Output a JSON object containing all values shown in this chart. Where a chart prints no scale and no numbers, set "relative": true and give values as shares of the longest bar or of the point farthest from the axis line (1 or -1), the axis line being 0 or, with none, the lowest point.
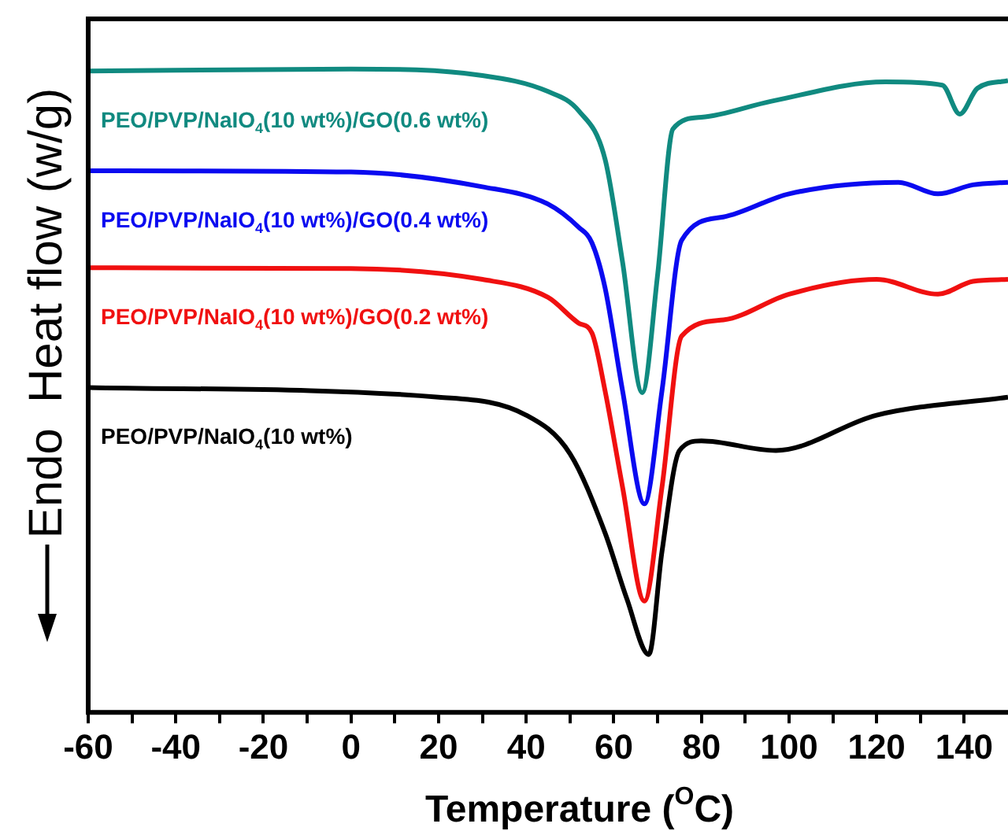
{
  "chart_data": {
    "type": "line",
    "relative": true,
    "xlabel": "Temperature ($^{O}$C)",
    "ylabel": "Heat flow (w/g)",
    "annotations": [
      "Endo"
    ],
    "marker": "none",
    "line_style": "solid",
    "xlim": [
      -60,
      150
    ],
    "xticks": [
      -60,
      {
        "value": -50,
        "label": null
      },
      -40,
      {
        "value": -30,
        "label": null
      },
      -20,
      {
        "value": -10,
        "label": null
      },
      0,
      {
        "value": 10,
        "label": null
      },
      20,
      {
        "value": 30,
        "label": null
      },
      40,
      {
        "value": 50,
        "label": null
      },
      60,
      {
        "value": 70,
        "label": null
      },
      80,
      {
        "value": 90,
        "label": null
      },
      100,
      {
        "value": 110,
        "label": null
      },
      120,
      {
        "value": 130,
        "label": null
      },
      140
    ],
    "series": [
      {
        "name": "PEO/PVP/NaIO$_{4}$(10 wt%)/GO(0.6 wt%)",
        "color": "#108a80",
        "x": [
          -60,
          0,
          30,
          45,
          52,
          58,
          62,
          66.5,
          70,
          73.5,
          80,
          96,
          122,
          135,
          139,
          143,
          150
        ],
        "values": [
          0.997,
          1.0,
          0.99,
          0.965,
          0.935,
          0.86,
          0.7,
          0.497,
          0.68,
          0.907,
          0.925,
          0.95,
          0.98,
          0.975,
          0.93,
          0.97,
          0.982
        ]
      },
      {
        "name": "PEO/PVP/NaIO$_{4}$(10 wt%)/GO(0.4 wt%)",
        "color": "#0a0af0",
        "x": [
          -60,
          0,
          30,
          45,
          52,
          55,
          58,
          62,
          67,
          71,
          75.5,
          85,
          100,
          125,
          134,
          142,
          150
        ],
        "values": [
          0.842,
          0.84,
          0.817,
          0.79,
          0.754,
          0.73,
          0.66,
          0.5,
          0.324,
          0.5,
          0.734,
          0.77,
          0.806,
          0.824,
          0.806,
          0.82,
          0.824
        ]
      },
      {
        "name": "PEO/PVP/NaIO$_{4}$(10 wt%)/GO(0.2 wt%)",
        "color": "#f01010",
        "x": [
          -60,
          0,
          30,
          45,
          52,
          55,
          58,
          62,
          67,
          71,
          75.5,
          85,
          100,
          120,
          134,
          142,
          150
        ],
        "values": [
          0.691,
          0.69,
          0.673,
          0.645,
          0.605,
          0.59,
          0.5,
          0.35,
          0.173,
          0.35,
          0.585,
          0.61,
          0.65,
          0.673,
          0.65,
          0.67,
          0.673
        ]
      },
      {
        "name": "PEO/PVP/NaIO$_{4}$(10 wt%)",
        "color": "#000000",
        "x": [
          -60,
          20,
          40,
          50,
          58,
          63,
          68,
          71,
          75,
          80,
          97,
          120,
          150
        ],
        "values": [
          0.505,
          0.49,
          0.462,
          0.402,
          0.279,
          0.176,
          0.09,
          0.25,
          0.407,
          0.422,
          0.407,
          0.462,
          0.49
        ]
      }
    ]
  }
}
